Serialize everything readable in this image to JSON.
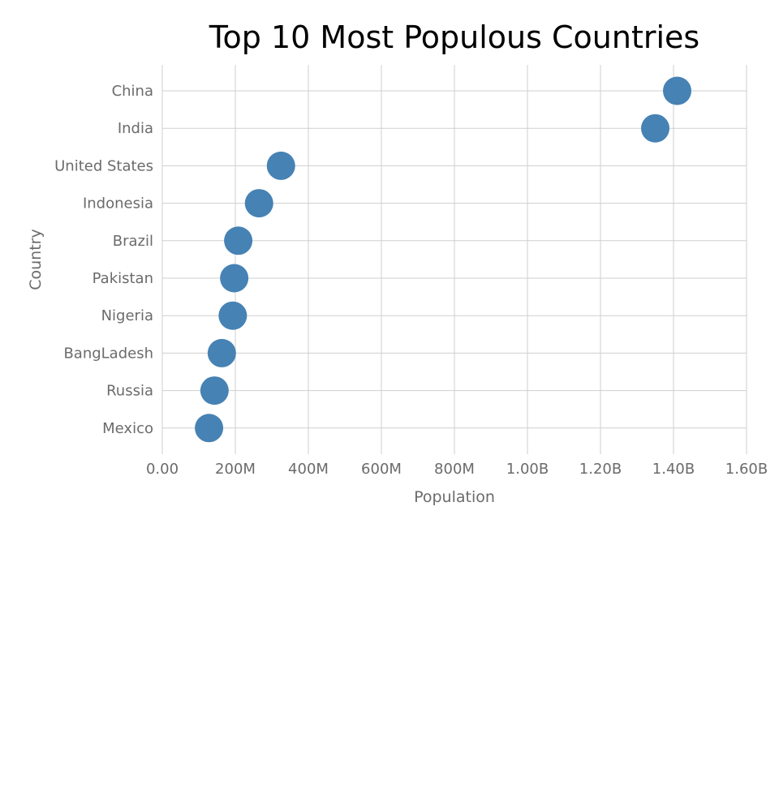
{
  "chart_data": {
    "type": "scatter",
    "title": "Top 10 Most Populous Countries",
    "xlabel": "Population",
    "ylabel": "Country",
    "xlim": [
      0,
      1600000000
    ],
    "x_ticks": [
      0,
      200000000,
      400000000,
      600000000,
      800000000,
      1000000000,
      1200000000,
      1400000000,
      1600000000
    ],
    "x_tick_labels": [
      "0.00",
      "200M",
      "400M",
      "600M",
      "800M",
      "1.00B",
      "1.20B",
      "1.40B",
      "1.60B"
    ],
    "categories": [
      "China",
      "India",
      "United States",
      "Indonesia",
      "Brazil",
      "Pakistan",
      "Nigeria",
      "BangLadesh",
      "Russia",
      "Mexico"
    ],
    "values": [
      1410000000,
      1350000000,
      325000000,
      265000000,
      208000000,
      197000000,
      193000000,
      163000000,
      143000000,
      128000000
    ],
    "grid": true,
    "colors": {
      "marker": "#4682b4",
      "grid": "#cfcfcf",
      "text": "#6b6b6b",
      "title": "#000000"
    }
  }
}
